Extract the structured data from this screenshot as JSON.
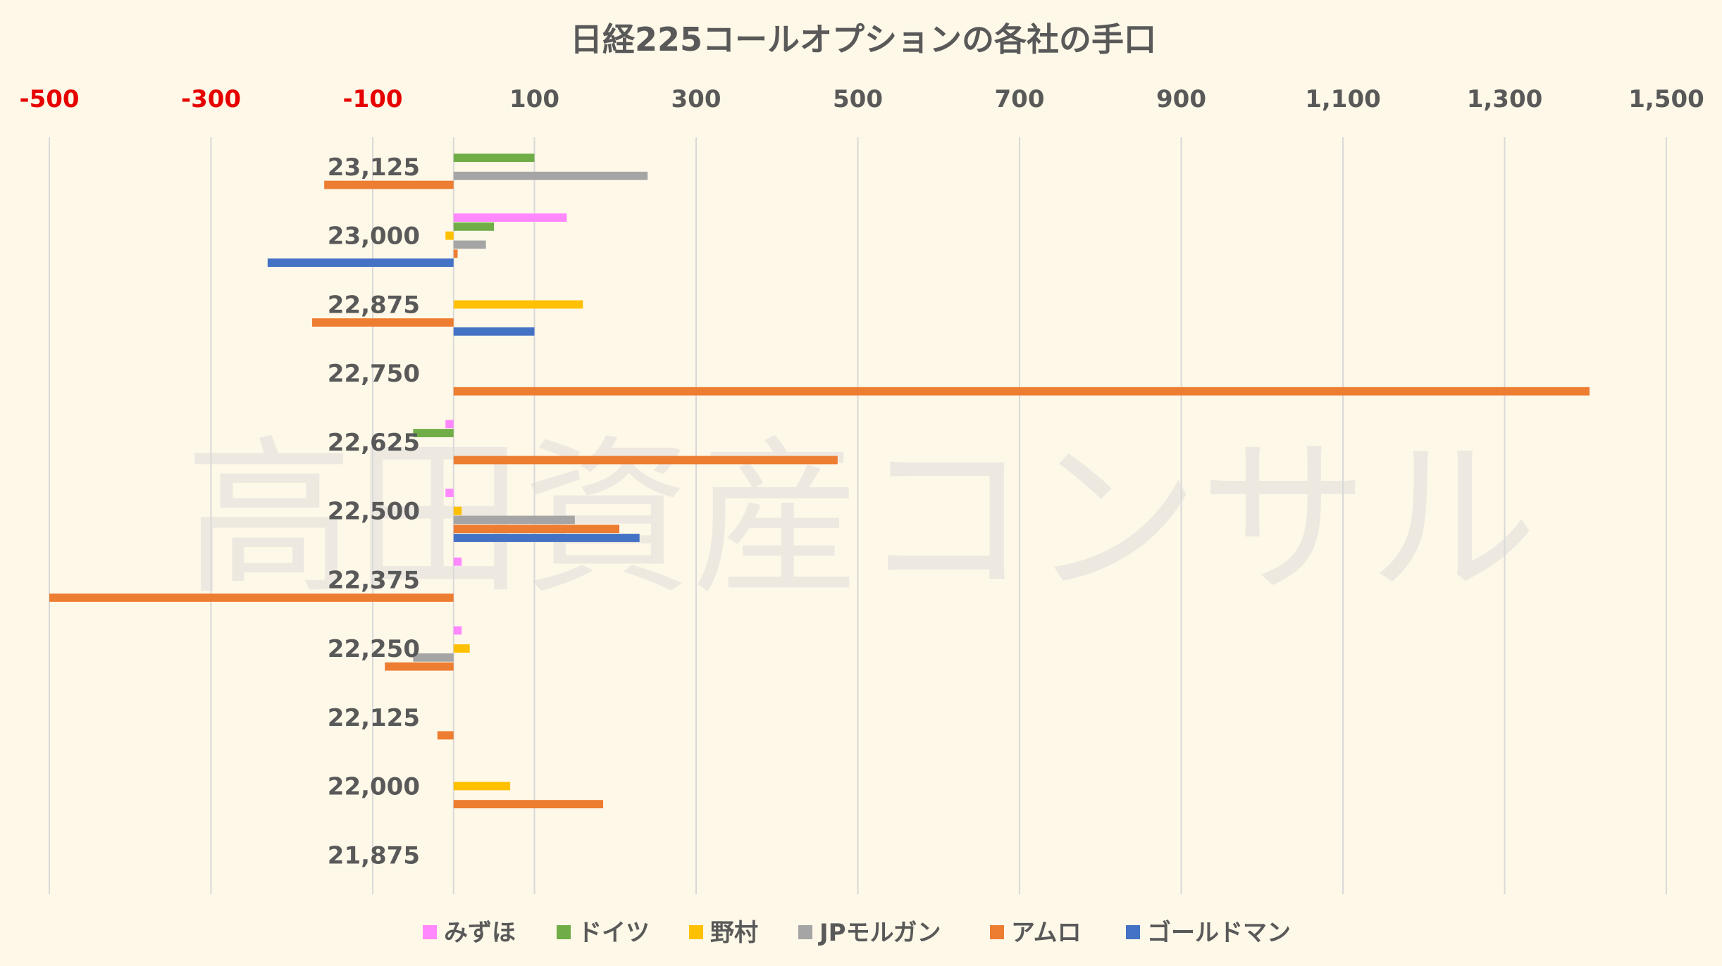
{
  "watermark": "高田資産コンサル",
  "chart_data": {
    "type": "bar",
    "orientation": "horizontal",
    "title": "日経225コールオプションの各社の手口",
    "xlim": [
      -500,
      1500
    ],
    "x_ticks": [
      -500,
      -300,
      -100,
      100,
      300,
      500,
      700,
      900,
      1100,
      1300,
      1500
    ],
    "x_tick_labels": [
      "-500",
      "-300",
      "-100",
      "100",
      "300",
      "500",
      "700",
      "900",
      "1,100",
      "1,300",
      "1,500"
    ],
    "negative_tick_color": "#e60000",
    "positive_tick_color": "#595959",
    "grid": "vertical",
    "legend_position": "bottom",
    "categories": [
      "23,125",
      "23,000",
      "22,875",
      "22,750",
      "22,625",
      "22,500",
      "22,375",
      "22,250",
      "22,125",
      "22,000",
      "21,875"
    ],
    "series": [
      {
        "name": "みずほ",
        "color": "#ff88ff",
        "values": [
          0,
          140,
          0,
          0,
          -10,
          -10,
          10,
          10,
          0,
          0,
          0
        ]
      },
      {
        "name": "ドイツ",
        "color": "#70ad47",
        "values": [
          100,
          50,
          0,
          0,
          -50,
          0,
          0,
          0,
          0,
          0,
          0
        ]
      },
      {
        "name": "野村",
        "color": "#ffc000",
        "values": [
          0,
          -10,
          160,
          0,
          0,
          10,
          0,
          20,
          0,
          70,
          0
        ]
      },
      {
        "name": "JPモルガン",
        "color": "#a5a5a5",
        "values": [
          240,
          40,
          0,
          0,
          0,
          150,
          0,
          -50,
          0,
          0,
          0
        ]
      },
      {
        "name": "アムロ",
        "color": "#ed7d31",
        "values": [
          -160,
          5,
          -175,
          1405,
          475,
          205,
          -500,
          -85,
          -20,
          185,
          0
        ]
      },
      {
        "name": "ゴールドマン",
        "color": "#4472c4",
        "values": [
          0,
          -230,
          100,
          0,
          0,
          230,
          0,
          0,
          0,
          0,
          0
        ]
      }
    ]
  }
}
